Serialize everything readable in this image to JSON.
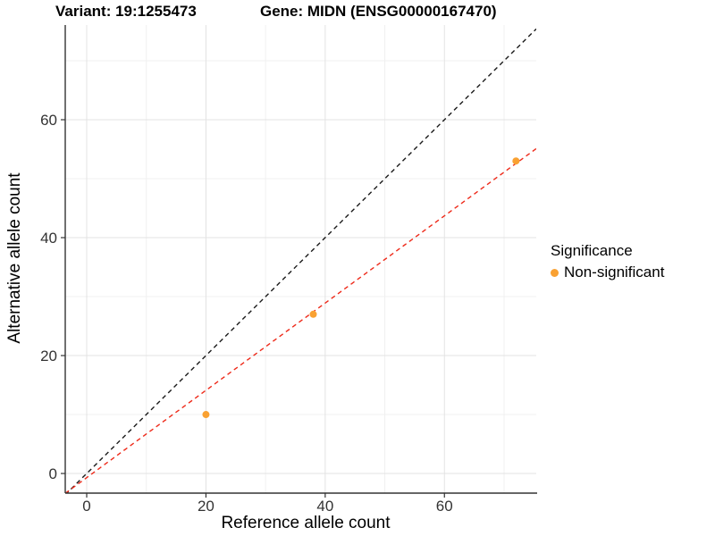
{
  "chart_data": {
    "type": "scatter",
    "title_left": "Variant: 19:1255473",
    "title_right": "Gene: MIDN (ENSG00000167470)",
    "xlabel": "Reference allele count",
    "ylabel": "Alternative allele count",
    "xlim": [
      -3.6,
      75.4
    ],
    "ylim": [
      -3.33,
      76.06
    ],
    "x_ticks": [
      0,
      20,
      40,
      60
    ],
    "y_ticks": [
      0,
      20,
      40,
      60
    ],
    "x_minor_ticks": [
      10,
      30,
      50,
      70
    ],
    "y_minor_ticks": [
      10,
      30,
      50,
      70
    ],
    "grid": "major and minor gridlines, white panel, left/bottom axis lines only",
    "points": [
      {
        "x": 20,
        "y": 10
      },
      {
        "x": 38,
        "y": 27
      },
      {
        "x": 72,
        "y": 53
      }
    ],
    "point_color": "#F9A132",
    "lines": [
      {
        "name": "identity-line",
        "slope": 1,
        "intercept": 0,
        "color": "#1A1A1A",
        "style": "dashed"
      },
      {
        "name": "fit-line",
        "slope": 0.74,
        "intercept": -0.7,
        "color": "#EE2A1A",
        "style": "dashed"
      }
    ],
    "legend": {
      "position": "right",
      "title": "Significance",
      "items": [
        {
          "label": "Non-significant",
          "color": "#F9A132"
        }
      ]
    }
  }
}
